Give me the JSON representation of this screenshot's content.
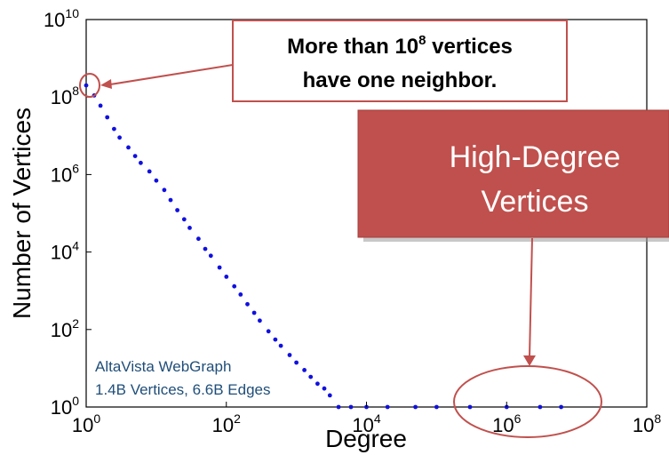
{
  "chart_data": {
    "type": "scatter",
    "xlabel": "Degree",
    "ylabel": "Number of Vertices",
    "xscale": "log",
    "yscale": "log",
    "xlim": [
      1,
      100000000
    ],
    "ylim": [
      1,
      10000000000
    ],
    "x_ticks": [
      {
        "base": "10",
        "exp": "0",
        "value": 1
      },
      {
        "base": "10",
        "exp": "2",
        "value": 100
      },
      {
        "base": "10",
        "exp": "4",
        "value": 10000
      },
      {
        "base": "10",
        "exp": "6",
        "value": 1000000
      },
      {
        "base": "10",
        "exp": "8",
        "value": 100000000
      }
    ],
    "y_ticks": [
      {
        "base": "10",
        "exp": "0",
        "value": 1
      },
      {
        "base": "10",
        "exp": "2",
        "value": 100
      },
      {
        "base": "10",
        "exp": "4",
        "value": 10000
      },
      {
        "base": "10",
        "exp": "6",
        "value": 1000000
      },
      {
        "base": "10",
        "exp": "8",
        "value": 100000000
      },
      {
        "base": "10",
        "exp": "10",
        "value": 10000000000
      }
    ],
    "marker_color": "#1010e0",
    "points": [
      [
        1,
        200000000
      ],
      [
        1.3,
        110000000
      ],
      [
        1.6,
        60000000
      ],
      [
        2,
        30000000
      ],
      [
        2.5,
        15000000
      ],
      [
        3,
        9000000
      ],
      [
        4,
        5000000
      ],
      [
        5,
        3000000
      ],
      [
        6,
        2000000
      ],
      [
        8,
        1200000
      ],
      [
        10,
        700000
      ],
      [
        13,
        400000
      ],
      [
        16,
        220000
      ],
      [
        20,
        120000
      ],
      [
        25,
        70000
      ],
      [
        30,
        42000
      ],
      [
        40,
        22000
      ],
      [
        50,
        12000
      ],
      [
        60,
        8000
      ],
      [
        80,
        4000
      ],
      [
        100,
        2300
      ],
      [
        130,
        1300
      ],
      [
        160,
        800
      ],
      [
        200,
        450
      ],
      [
        250,
        270
      ],
      [
        300,
        170
      ],
      [
        400,
        90
      ],
      [
        500,
        55
      ],
      [
        600,
        38
      ],
      [
        800,
        22
      ],
      [
        1000,
        14
      ],
      [
        1300,
        9
      ],
      [
        1600,
        6
      ],
      [
        2000,
        4
      ],
      [
        2500,
        3
      ],
      [
        3000,
        2
      ],
      [
        4000,
        1
      ],
      [
        6000,
        1
      ],
      [
        10000,
        1
      ],
      [
        20000,
        1
      ],
      [
        50000,
        1
      ],
      [
        100000,
        1
      ],
      [
        300000,
        1
      ],
      [
        1000000,
        1
      ],
      [
        3000000,
        1
      ],
      [
        6000000,
        1
      ]
    ]
  },
  "annotations": {
    "callout_line1_prefix": "More than 10",
    "callout_line1_exp": "8",
    "callout_line1_suffix": " vertices",
    "callout_line2": "have one neighbor.",
    "high_degree_line1": "High-Degree",
    "high_degree_line2": "Vertices",
    "note_line1": "AltaVista WebGraph",
    "note_line2": "1.4B Vertices, 6.6B Edges"
  },
  "colors": {
    "callout_border": "#c0504d",
    "high_degree_fill": "#c0504d",
    "high_degree_text": "#ffffff",
    "note_text": "#1f4e79",
    "ellipse": "#c0504d"
  }
}
